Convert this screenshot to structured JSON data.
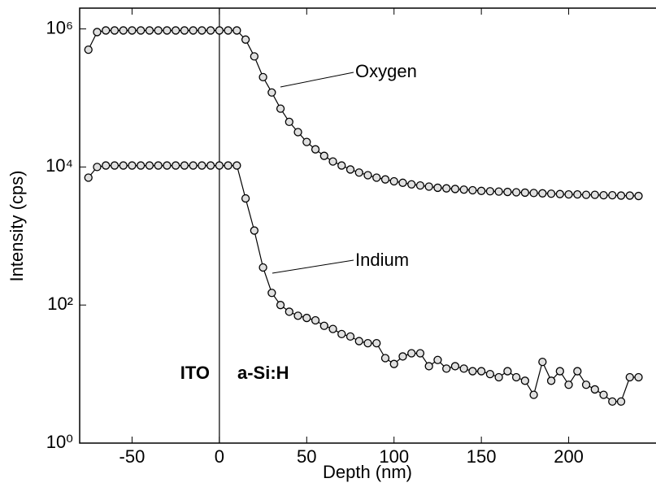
{
  "chart_data": {
    "type": "line",
    "log_y": true,
    "xlabel": "Depth (nm)",
    "ylabel": "Intensity (cps)",
    "annotations": [
      "Oxygen",
      "Indium",
      "ITO",
      "a-Si:H"
    ],
    "x": [
      -75,
      -70,
      -65,
      -60,
      -55,
      -50,
      -45,
      -40,
      -35,
      -30,
      -25,
      -20,
      -15,
      -10,
      -5,
      0,
      5,
      10,
      15,
      20,
      25,
      30,
      35,
      40,
      45,
      50,
      55,
      60,
      65,
      70,
      75,
      80,
      85,
      90,
      95,
      100,
      105,
      110,
      115,
      120,
      125,
      130,
      135,
      140,
      145,
      150,
      155,
      160,
      165,
      170,
      175,
      180,
      185,
      190,
      195,
      200,
      205,
      210,
      215,
      220,
      225,
      230,
      235,
      240
    ],
    "series": [
      {
        "name": "Oxygen",
        "color": "#000000",
        "values": [
          500000,
          900000,
          950000,
          950000,
          950000,
          950000,
          950000,
          950000,
          950000,
          950000,
          950000,
          950000,
          950000,
          950000,
          950000,
          950000,
          950000,
          950000,
          700000,
          400000,
          200000,
          120000,
          70000,
          45000,
          32000,
          23000,
          18000,
          14500,
          12000,
          10500,
          9200,
          8300,
          7600,
          7000,
          6600,
          6200,
          5900,
          5600,
          5400,
          5200,
          5000,
          4900,
          4800,
          4700,
          4600,
          4500,
          4450,
          4400,
          4350,
          4300,
          4250,
          4200,
          4150,
          4100,
          4050,
          4000,
          4000,
          3950,
          3950,
          3900,
          3900,
          3850,
          3850,
          3800
        ]
      },
      {
        "name": "Indium",
        "color": "#000000",
        "values": [
          7000,
          10000,
          10500,
          10500,
          10500,
          10500,
          10500,
          10500,
          10500,
          10500,
          10500,
          10500,
          10500,
          10500,
          10500,
          10500,
          10500,
          10500,
          3500,
          1200,
          350,
          150,
          100,
          80,
          70,
          65,
          60,
          50,
          45,
          38,
          35,
          30,
          28,
          28,
          17,
          14,
          18,
          20,
          20,
          13,
          16,
          12,
          13,
          12,
          11,
          11,
          10,
          9,
          11,
          9,
          8,
          5,
          15,
          8,
          11,
          7,
          11,
          7,
          6,
          5,
          4,
          4,
          9,
          9
        ]
      }
    ],
    "xlim": [
      -80,
      250
    ],
    "xticks": [
      -50,
      0,
      50,
      100,
      150,
      200
    ],
    "ylim": [
      1,
      2000000
    ],
    "yticks": [
      {
        "value": 1,
        "label": "10⁰"
      },
      {
        "value": 100,
        "label": "10²"
      },
      {
        "value": 10000,
        "label": "10⁴"
      },
      {
        "value": 1000000,
        "label": "10⁶"
      }
    ],
    "vline": 0
  }
}
